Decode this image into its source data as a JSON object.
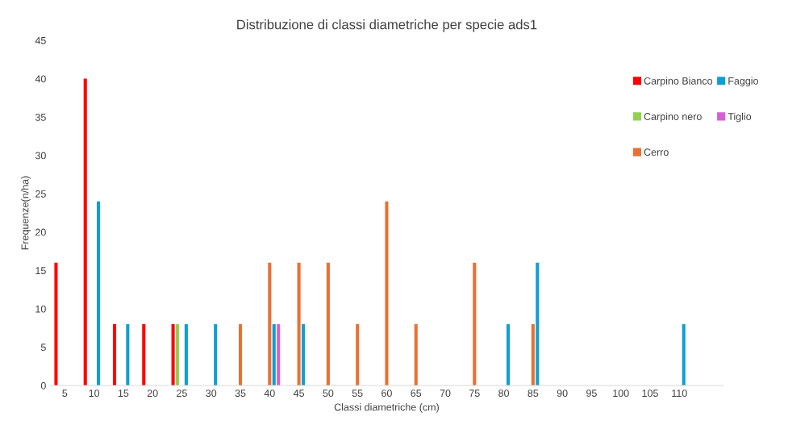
{
  "chart_data": {
    "type": "bar",
    "title": "Distribuzione di classi diametriche per specie ads1",
    "xlabel": "Classi diametriche (cm)",
    "ylabel": "Frequenze(n/ha)",
    "categories": [
      "5",
      "10",
      "15",
      "20",
      "25",
      "30",
      "35",
      "40",
      "45",
      "50",
      "55",
      "60",
      "65",
      "70",
      "75",
      "80",
      "85",
      "90",
      "95",
      "100",
      "105",
      "110",
      null
    ],
    "series": [
      {
        "name": "Carpino Bianco",
        "color": "#ff0000",
        "values": [
          16,
          40,
          8,
          8,
          8,
          null,
          null,
          null,
          null,
          null,
          null,
          null,
          null,
          null,
          null,
          null,
          null,
          null,
          null,
          null,
          null,
          null,
          null
        ]
      },
      {
        "name": "Carpino nero",
        "color": "#92d050",
        "values": [
          null,
          null,
          null,
          null,
          8,
          null,
          null,
          null,
          null,
          null,
          null,
          null,
          null,
          null,
          null,
          null,
          null,
          null,
          null,
          null,
          null,
          null,
          null
        ]
      },
      {
        "name": "Cerro",
        "color": "#e97132",
        "values": [
          null,
          null,
          null,
          null,
          null,
          null,
          8,
          16,
          16,
          16,
          8,
          24,
          8,
          null,
          16,
          null,
          8,
          null,
          null,
          null,
          null,
          null,
          null
        ]
      },
      {
        "name": "Faggio",
        "color": "#0f9ed5",
        "values": [
          null,
          24,
          8,
          null,
          8,
          8,
          null,
          8,
          8,
          null,
          null,
          null,
          null,
          null,
          null,
          8,
          16,
          null,
          null,
          null,
          null,
          8,
          null
        ]
      },
      {
        "name": "Tiglio",
        "color": "#d65fd6",
        "values": [
          null,
          null,
          null,
          null,
          null,
          null,
          null,
          8,
          null,
          null,
          null,
          null,
          null,
          null,
          null,
          null,
          null,
          null,
          null,
          null,
          null,
          null,
          null
        ]
      }
    ],
    "ylim": [
      0,
      45
    ],
    "yticks": [
      0,
      5,
      10,
      15,
      20,
      25,
      30,
      35,
      40,
      45
    ],
    "grid": false,
    "legend": "right"
  }
}
